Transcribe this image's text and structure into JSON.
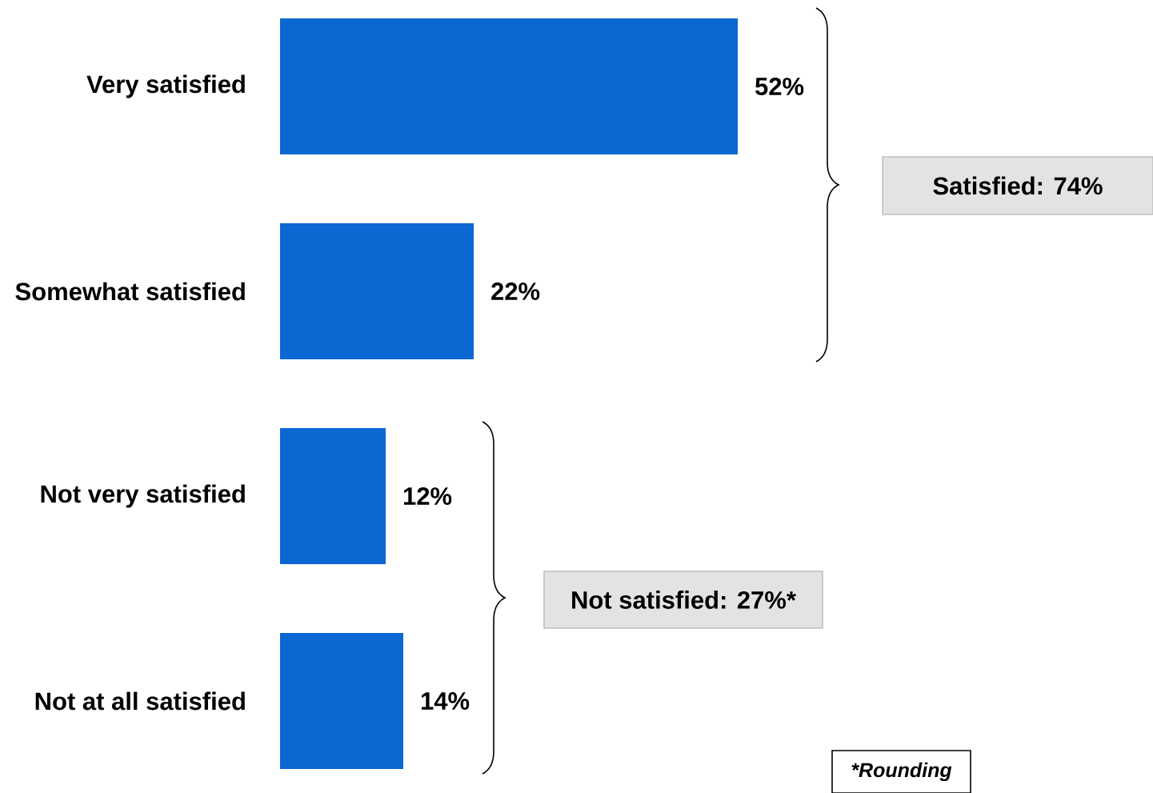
{
  "chart_data": {
    "type": "bar",
    "orientation": "horizontal",
    "categories": [
      "Very satisfied",
      "Somewhat satisfied",
      "Not very satisfied",
      "Not at all satisfied"
    ],
    "values": [
      52,
      22,
      12,
      14
    ],
    "value_labels": [
      "52%",
      "22%",
      "12%",
      "14%"
    ],
    "color": "#0b67d1",
    "annotations": [
      "Satisfied: 74%",
      "Not satisfied: 27%*",
      "*Rounding"
    ]
  }
}
